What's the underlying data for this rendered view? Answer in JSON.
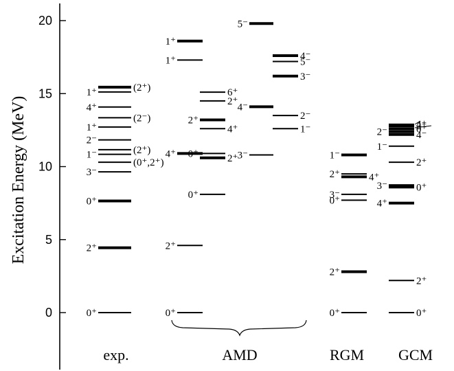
{
  "chart_data": {
    "type": "level-scheme",
    "ylabel": "Excitation Energy   (MeV)",
    "ylim": [
      -3,
      22
    ],
    "yticks": [
      0,
      5,
      10,
      15,
      20
    ],
    "group_labels": [
      {
        "name": "exp.",
        "columns": [
          "exp"
        ]
      },
      {
        "name": "AMD",
        "columns": [
          "amd1",
          "amd2",
          "amd3",
          "amd4"
        ]
      },
      {
        "name": "RGM",
        "columns": [
          "rgm"
        ]
      },
      {
        "name": "GCM",
        "columns": [
          "gcm"
        ]
      }
    ],
    "columns": [
      {
        "id": "exp",
        "levels": [
          {
            "e": 0,
            "label": "0⁺",
            "side": "left"
          },
          {
            "e": 4.44,
            "label": "2⁺",
            "side": "left",
            "bold": true
          },
          {
            "e": 7.65,
            "label": "0⁺",
            "side": "left",
            "bold": true
          },
          {
            "e": 9.64,
            "label": "3⁻",
            "side": "left"
          },
          {
            "e": 10.3,
            "label": "(0⁺,2⁺)",
            "side": "right"
          },
          {
            "e": 10.84,
            "label": "1⁻",
            "side": "left"
          },
          {
            "e": 11.16,
            "label": "(2⁺)",
            "side": "right"
          },
          {
            "e": 11.83,
            "label": "2⁻",
            "side": "left"
          },
          {
            "e": 12.71,
            "label": "1⁺",
            "side": "left"
          },
          {
            "e": 13.35,
            "label": "(2⁻)",
            "side": "right"
          },
          {
            "e": 14.08,
            "label": "4⁺",
            "side": "left"
          },
          {
            "e": 15.11,
            "label": "1⁺",
            "side": "left"
          },
          {
            "e": 15.44,
            "label": "(2⁺)",
            "side": "right",
            "bold": true
          }
        ]
      },
      {
        "id": "amd1",
        "levels": [
          {
            "e": 0,
            "label": "0⁺",
            "side": "left"
          },
          {
            "e": 4.6,
            "label": "2⁺",
            "side": "left"
          },
          {
            "e": 10.9,
            "label": "4⁺",
            "side": "left",
            "bold": true
          },
          {
            "e": 17.3,
            "label": "1⁺",
            "side": "left"
          },
          {
            "e": 18.6,
            "label": "1⁺",
            "side": "left",
            "bold": true
          }
        ]
      },
      {
        "id": "amd2",
        "levels": [
          {
            "e": 8.1,
            "label": "0⁺",
            "side": "left"
          },
          {
            "e": 10.6,
            "label": "2⁺",
            "side": "right",
            "bold": true
          },
          {
            "e": 10.9,
            "label": "0⁺",
            "side": "left"
          },
          {
            "e": 12.6,
            "label": "4⁺",
            "side": "right"
          },
          {
            "e": 13.2,
            "label": "2⁺",
            "side": "left",
            "bold": true
          },
          {
            "e": 14.5,
            "label": "2⁺",
            "side": "right"
          },
          {
            "e": 15.1,
            "label": "6⁺",
            "side": "right"
          }
        ]
      },
      {
        "id": "amd3",
        "levels": [
          {
            "e": 10.8,
            "label": "3⁻",
            "side": "left"
          },
          {
            "e": 14.1,
            "label": "4⁻",
            "side": "left",
            "bold": true
          },
          {
            "e": 19.8,
            "label": "5⁻",
            "side": "left",
            "bold": true
          }
        ]
      },
      {
        "id": "amd4",
        "levels": [
          {
            "e": 12.6,
            "label": "1⁻",
            "side": "right"
          },
          {
            "e": 13.5,
            "label": "2⁻",
            "side": "right"
          },
          {
            "e": 16.2,
            "label": "3⁻",
            "side": "right",
            "bold": true
          },
          {
            "e": 17.2,
            "label": "5⁻",
            "side": "right"
          },
          {
            "e": 17.6,
            "label": "4⁻",
            "side": "right",
            "bold": true
          }
        ]
      },
      {
        "id": "rgm",
        "levels": [
          {
            "e": 0,
            "label": "0⁺",
            "side": "left"
          },
          {
            "e": 2.8,
            "label": "2⁺",
            "side": "left",
            "bold": true
          },
          {
            "e": 7.7,
            "label": "0⁺",
            "side": "left"
          },
          {
            "e": 8.1,
            "label": "3⁻",
            "side": "left"
          },
          {
            "e": 9.3,
            "label": "4⁺",
            "side": "right",
            "bold": true
          },
          {
            "e": 9.5,
            "label": "2⁺",
            "side": "left"
          },
          {
            "e": 10.8,
            "label": "1⁻",
            "side": "left",
            "bold": true
          }
        ]
      },
      {
        "id": "gcm",
        "levels": [
          {
            "e": 0,
            "label": "0⁺",
            "side": "right"
          },
          {
            "e": 2.2,
            "label": "2⁺",
            "side": "right"
          },
          {
            "e": 7.5,
            "label": "4⁺",
            "side": "left",
            "bold": true
          },
          {
            "e": 8.6,
            "label": "0⁺",
            "side": "right",
            "bold": true
          },
          {
            "e": 8.7,
            "label": "3⁻",
            "side": "left",
            "bold": true
          },
          {
            "e": 10.3,
            "label": "2⁺",
            "side": "right"
          },
          {
            "e": 11.4,
            "label": "1⁻",
            "side": "left"
          },
          {
            "e": 12.2,
            "label": "4⁻",
            "side": "right",
            "bold": true
          },
          {
            "e": 12.4,
            "label": "2⁻",
            "side": "left",
            "bold": true
          },
          {
            "e": 12.6,
            "label": "0⁺",
            "side": "right",
            "bold": true
          },
          {
            "e": 12.8,
            "label": "2⁺",
            "side": "right",
            "bold": true
          },
          {
            "e": 12.9,
            "label": "4⁺",
            "side": "right"
          }
        ]
      }
    ]
  }
}
